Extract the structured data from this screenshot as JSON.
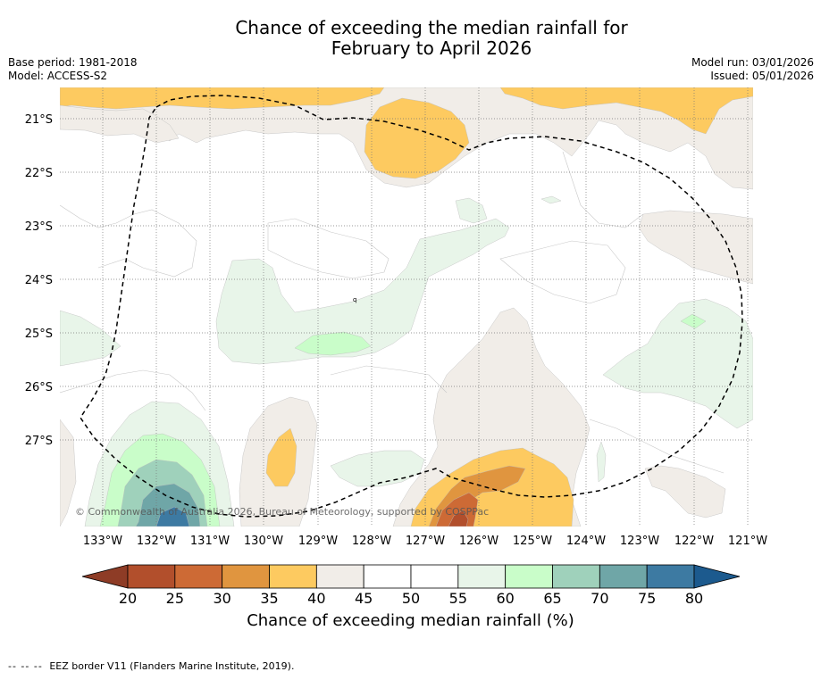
{
  "title": {
    "line1": "Chance of exceeding the median rainfall for",
    "line2": "February to April 2026"
  },
  "meta_left": {
    "base_period": "Base period: 1981-2018",
    "model": "Model: ACCESS-S2"
  },
  "meta_right": {
    "model_run": "Model run: 03/01/2026",
    "issued": "Issued: 05/01/2026"
  },
  "map": {
    "lat_labels": [
      "21°S",
      "22°S",
      "23°S",
      "24°S",
      "25°S",
      "26°S",
      "27°S"
    ],
    "lon_labels": [
      "133°W",
      "132°W",
      "131°W",
      "130°W",
      "129°W",
      "128°W",
      "127°W",
      "126°W",
      "125°W",
      "124°W",
      "123°W",
      "122°W",
      "121°W"
    ],
    "copyright": "© Commonwealth of Australia 2026, Bureau of Meteorology, supported by COSPPac",
    "eez_color": "#000000"
  },
  "colorbar": {
    "bins": [
      {
        "color": "#b24f2c"
      },
      {
        "color": "#cd6a35"
      },
      {
        "color": "#e0953f"
      },
      {
        "color": "#fdca60"
      },
      {
        "color": "#f1ede8"
      },
      {
        "color": "#ffffff"
      },
      {
        "color": "#ffffff"
      },
      {
        "color": "#e8f5e9"
      },
      {
        "color": "#c9fdc9"
      },
      {
        "color": "#9fd1bb"
      },
      {
        "color": "#6fa6a7"
      },
      {
        "color": "#3d7aa2"
      }
    ],
    "under_color": "#8e3c26",
    "over_color": "#1c5a8e",
    "tick_labels": [
      "20",
      "25",
      "30",
      "35",
      "40",
      "45",
      "50",
      "55",
      "60",
      "65",
      "70",
      "75",
      "80"
    ],
    "title": "Chance of exceeding median rainfall (%)"
  },
  "footer": {
    "dashes": "-- -- --",
    "text": "EEZ border V11 (Flanders Marine Institute, 2019)."
  }
}
